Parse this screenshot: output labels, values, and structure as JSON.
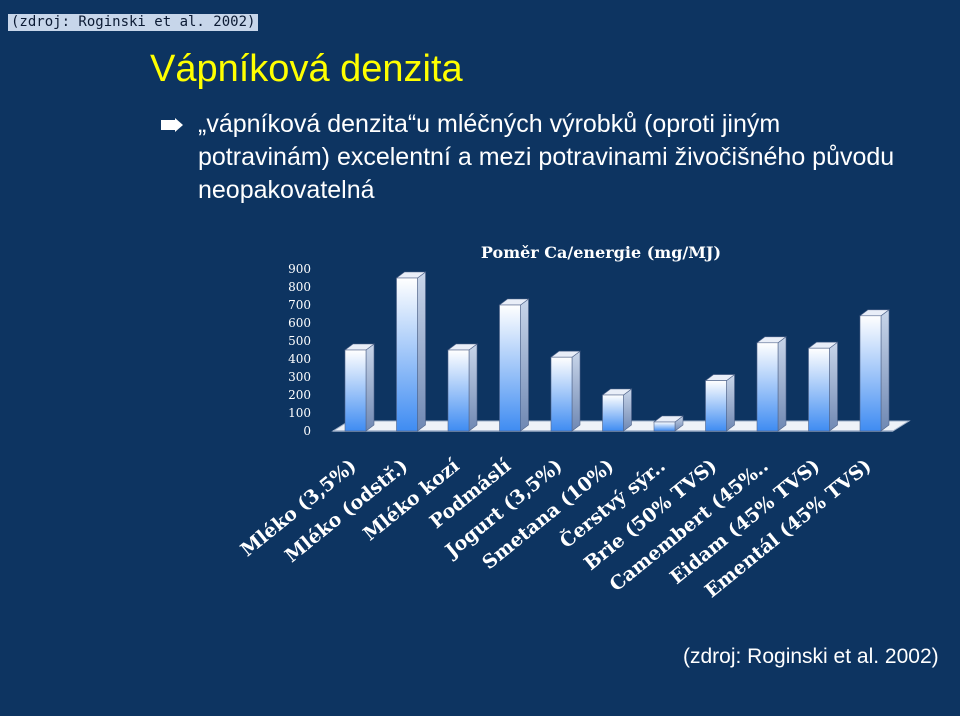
{
  "source_top": "(zdroj: Roginski et al. 2002)",
  "slide_title": "Vápníková denzita",
  "bullet_text": "„vápníková denzita“u mléčných výrobků (oproti jiným potravinám) excelentní a mezi potravinami živočišného původu neopakovatelná",
  "source_bottom": "(zdroj: Roginski et al. 2002)",
  "colors": {
    "background": "#0d3461",
    "title": "#ffff00",
    "text": "#ffffff",
    "bar_front_top": "#ffffff",
    "bar_front_bottom": "#3f8cf2"
  },
  "chart_data": {
    "type": "bar",
    "title": "Poměr Ca/energie (mg/MJ)",
    "categories": [
      "Mléko (3,5%)",
      "Mléko (odstř.)",
      "Mléko kozí",
      "Podmáslí",
      "Jogurt (3,5%)",
      "Smetana (10%)",
      "Čerstvý sýr..",
      "Brie (50% TVS)",
      "Camembert (45%..",
      "Eidam (45% TVS)",
      "Ementál (45% TVS)"
    ],
    "values": [
      450,
      850,
      450,
      700,
      410,
      200,
      50,
      280,
      490,
      460,
      640
    ],
    "ylim": [
      0,
      900
    ],
    "yticks": [
      "900",
      "800",
      "700",
      "600",
      "500",
      "400",
      "300",
      "200",
      "100",
      "0"
    ],
    "grid": false
  }
}
